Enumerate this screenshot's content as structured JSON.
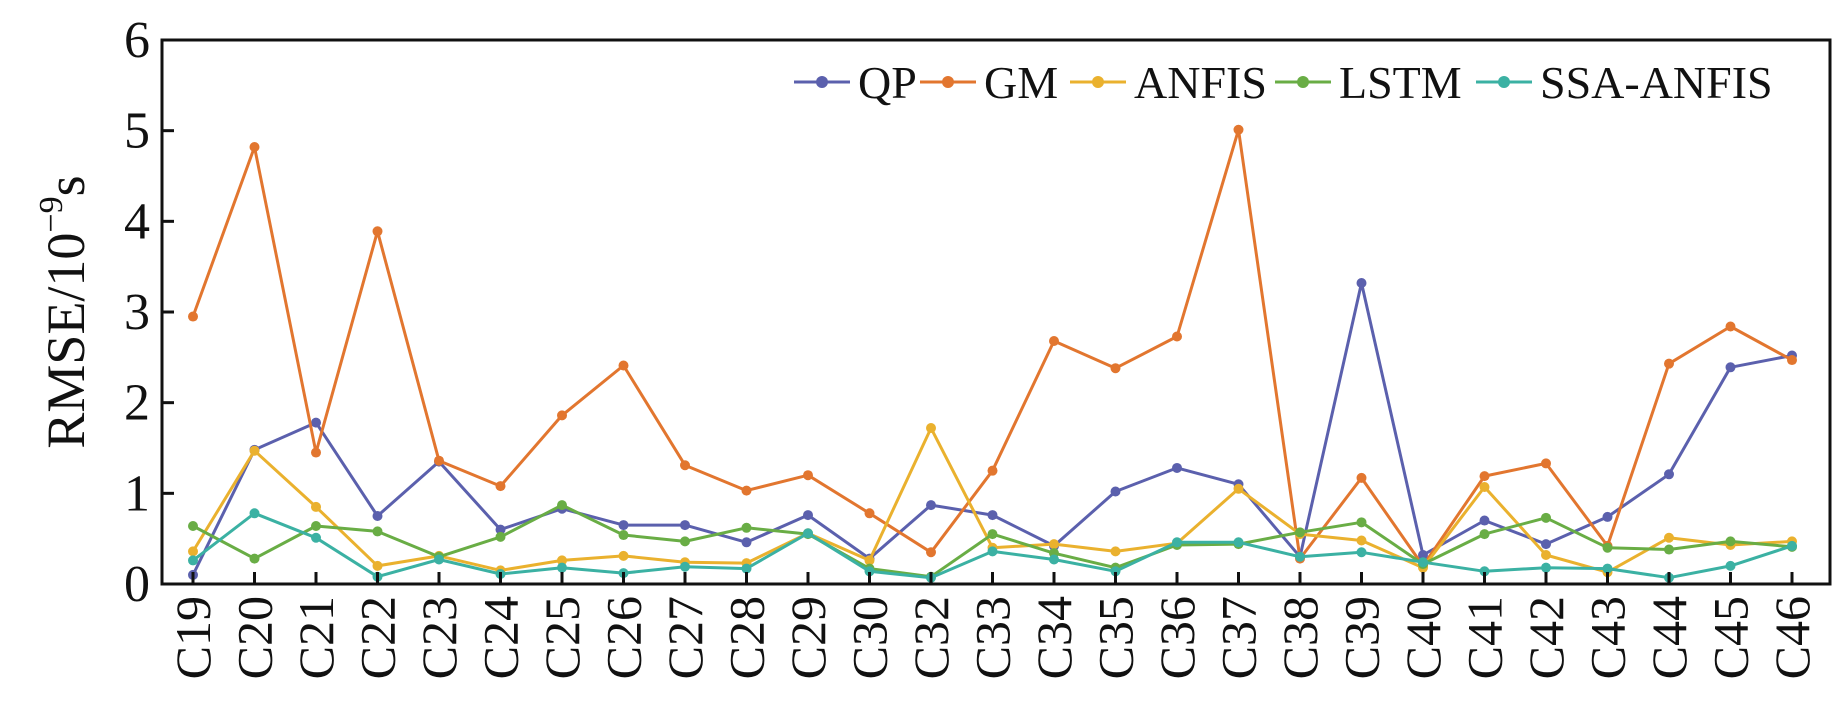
{
  "chart_data": {
    "type": "line",
    "title": "",
    "xlabel": "",
    "ylabel": "RMSE/10",
    "ylabel_exponent": "−9",
    "ylabel_unit": "s",
    "ylim": [
      0,
      6
    ],
    "yticks": [
      "0",
      "1",
      "2",
      "3",
      "4",
      "5",
      "6"
    ],
    "grid": false,
    "legend_position": "top-right",
    "categories": [
      "C19",
      "C20",
      "C21",
      "C22",
      "C23",
      "C24",
      "C25",
      "C26",
      "C27",
      "C28",
      "C29",
      "C30",
      "C32",
      "C33",
      "C34",
      "C35",
      "C36",
      "C37",
      "C38",
      "C39",
      "C40",
      "C41",
      "C42",
      "C43",
      "C44",
      "C45",
      "C46"
    ],
    "series": [
      {
        "name": "QP",
        "color": "#5b60ad",
        "values": [
          0.1,
          1.48,
          1.78,
          0.75,
          1.35,
          0.6,
          0.83,
          0.65,
          0.65,
          0.46,
          0.76,
          0.28,
          0.87,
          0.76,
          0.42,
          1.02,
          1.28,
          1.1,
          0.3,
          3.32,
          0.32,
          0.7,
          0.44,
          0.74,
          1.21,
          2.39,
          2.52
        ]
      },
      {
        "name": "GM",
        "color": "#e2762f",
        "values": [
          2.95,
          4.82,
          1.45,
          3.89,
          1.36,
          1.08,
          1.86,
          2.41,
          1.31,
          1.03,
          1.2,
          0.78,
          0.35,
          1.25,
          2.68,
          2.38,
          2.73,
          5.01,
          0.28,
          1.17,
          0.2,
          1.19,
          1.33,
          0.42,
          2.43,
          2.84,
          2.47
        ]
      },
      {
        "name": "ANFIS",
        "color": "#eab12e",
        "values": [
          0.36,
          1.47,
          0.85,
          0.2,
          0.31,
          0.15,
          0.26,
          0.31,
          0.24,
          0.23,
          0.56,
          0.26,
          1.72,
          0.4,
          0.44,
          0.36,
          0.45,
          1.05,
          0.55,
          0.48,
          0.18,
          1.07,
          0.32,
          0.13,
          0.51,
          0.43,
          0.47
        ]
      },
      {
        "name": "LSTM",
        "color": "#69ad45",
        "values": [
          0.64,
          0.28,
          0.64,
          0.58,
          0.3,
          0.52,
          0.87,
          0.54,
          0.47,
          0.62,
          0.55,
          0.17,
          0.08,
          0.55,
          0.34,
          0.18,
          0.43,
          0.44,
          0.57,
          0.68,
          0.22,
          0.55,
          0.73,
          0.4,
          0.38,
          0.47,
          0.41
        ]
      },
      {
        "name": "SSA-ANFIS",
        "color": "#3bb1a3",
        "values": [
          0.26,
          0.78,
          0.51,
          0.08,
          0.27,
          0.11,
          0.18,
          0.12,
          0.19,
          0.17,
          0.56,
          0.14,
          0.07,
          0.36,
          0.27,
          0.14,
          0.46,
          0.46,
          0.3,
          0.35,
          0.24,
          0.14,
          0.18,
          0.17,
          0.07,
          0.2,
          0.42
        ]
      }
    ]
  }
}
